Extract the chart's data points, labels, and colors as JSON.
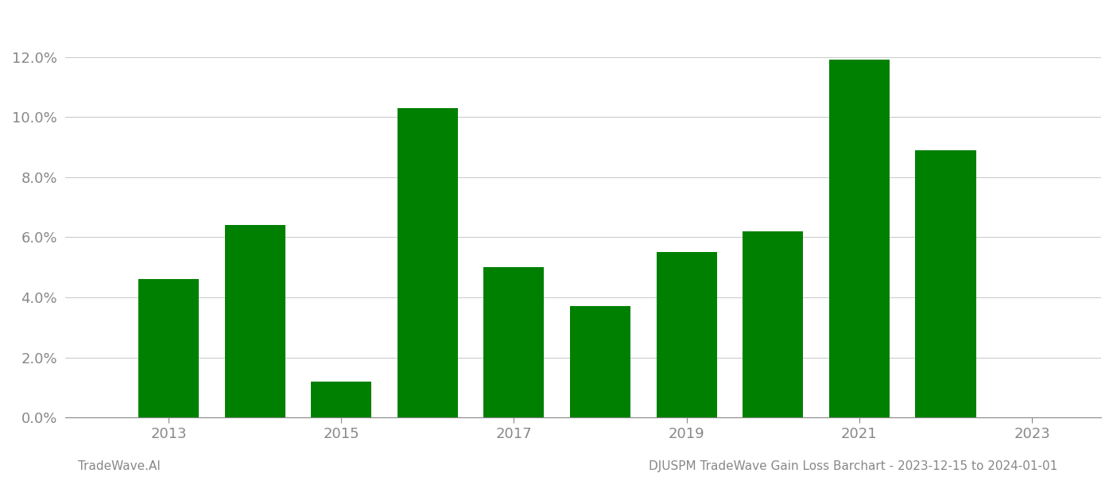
{
  "years": [
    2013,
    2014,
    2015,
    2016,
    2017,
    2018,
    2019,
    2020,
    2021,
    2022
  ],
  "values": [
    0.046,
    0.064,
    0.012,
    0.103,
    0.05,
    0.037,
    0.055,
    0.062,
    0.119,
    0.089
  ],
  "bar_color": "#008000",
  "ylim": [
    0,
    0.135
  ],
  "yticks": [
    0.0,
    0.02,
    0.04,
    0.06,
    0.08,
    0.1,
    0.12
  ],
  "xtick_positions": [
    2013,
    2015,
    2017,
    2019,
    2021,
    2023
  ],
  "xtick_labels": [
    "2013",
    "2015",
    "2017",
    "2019",
    "2021",
    "2023"
  ],
  "xlim": [
    2011.8,
    2023.8
  ],
  "footer_left": "TradeWave.AI",
  "footer_right": "DJUSPM TradeWave Gain Loss Barchart - 2023-12-15 to 2024-01-01",
  "background_color": "#ffffff",
  "grid_color": "#cccccc",
  "tick_label_color": "#888888",
  "footer_color": "#888888",
  "bar_width": 0.7
}
